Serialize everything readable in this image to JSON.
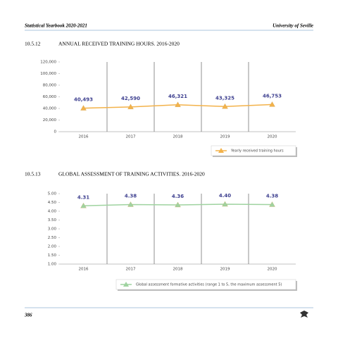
{
  "header": {
    "left": "Statistical Yearbook 2020-2021",
    "right": "University of Seville"
  },
  "footer": {
    "page": "386"
  },
  "chart_data": [
    {
      "type": "line",
      "number": "10.5.12",
      "title": "ANNUAL RECEIVED TRAINING HOURS. 2016-2020",
      "categories": [
        "2016",
        "2017",
        "2018",
        "2019",
        "2020"
      ],
      "series": [
        {
          "name": "Yearly received training hours",
          "color": "#f3b24a",
          "values": [
            40493,
            42590,
            46321,
            43325,
            46753
          ],
          "value_labels": [
            "40,493",
            "42,590",
            "46,321",
            "43,325",
            "46,753"
          ]
        }
      ],
      "ylim": [
        0,
        120000
      ],
      "yticks": [
        0,
        {
          "value": 20000,
          "label": "20,000"
        },
        {
          "value": 40000,
          "label": "40,000"
        },
        {
          "value": 60000,
          "label": "60,000"
        },
        {
          "value": 80000,
          "label": "80,000"
        },
        {
          "value": 100000,
          "label": "100,000"
        },
        {
          "value": 120000,
          "label": "120,000"
        }
      ],
      "legend": "bottom-right"
    },
    {
      "type": "line",
      "number": "10.5.13",
      "title": "GLOBAL ASSESSMENT OF TRAINING ACTIVITIES. 2016-2020",
      "categories": [
        "2016",
        "2017",
        "2018",
        "2019",
        "2020"
      ],
      "series": [
        {
          "name": "Global assessment formative activities (range 1 to 5, the maximum assessment 5)",
          "color": "#9fd3a0",
          "values": [
            4.31,
            4.38,
            4.36,
            4.4,
            4.38
          ],
          "value_labels": [
            "4.31",
            "4.38",
            "4.36",
            "4.40",
            "4.38"
          ]
        }
      ],
      "ylim": [
        1,
        5
      ],
      "yticks": [
        {
          "value": 1,
          "label": "1.00"
        },
        {
          "value": 1.5,
          "label": "1.50"
        },
        {
          "value": 2,
          "label": "2.00"
        },
        {
          "value": 2.5,
          "label": "2.50"
        },
        {
          "value": 3,
          "label": "3.00"
        },
        {
          "value": 3.5,
          "label": "3.50"
        },
        {
          "value": 4,
          "label": "4.00"
        },
        {
          "value": 4.5,
          "label": "4.50"
        },
        {
          "value": 5,
          "label": "5.00"
        }
      ],
      "legend": "bottom-right"
    }
  ]
}
